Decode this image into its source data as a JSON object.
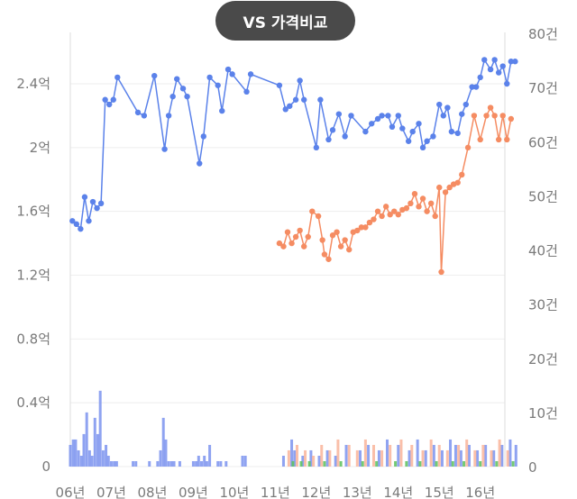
{
  "header": {
    "vs_button_label": "VS 가격비교"
  },
  "chart_data": {
    "type": "line",
    "x_tick_labels": [
      "06년",
      "07년",
      "08년",
      "09년",
      "10년",
      "11년",
      "12년",
      "13년",
      "14년",
      "15년",
      "16년"
    ],
    "y_left_ticks": [
      {
        "value": 0,
        "label": "0"
      },
      {
        "value": 0.4,
        "label": "0.4억"
      },
      {
        "value": 0.8,
        "label": "0.8억"
      },
      {
        "value": 1.2,
        "label": "1.2억"
      },
      {
        "value": 1.6,
        "label": "1.6억"
      },
      {
        "value": 2.0,
        "label": "2억"
      },
      {
        "value": 2.4,
        "label": "2.4억"
      }
    ],
    "y_right_ticks": [
      {
        "value": 0,
        "label": "0"
      },
      {
        "value": 10,
        "label": "10건"
      },
      {
        "value": 20,
        "label": "20건"
      },
      {
        "value": 30,
        "label": "30건"
      },
      {
        "value": 40,
        "label": "40건"
      },
      {
        "value": 50,
        "label": "50건"
      },
      {
        "value": 60,
        "label": "60건"
      },
      {
        "value": 70,
        "label": "70건"
      },
      {
        "value": 80,
        "label": "80건"
      }
    ],
    "ylim_left": [
      0,
      2.6
    ],
    "ylim_right": [
      0,
      80
    ],
    "xlim": [
      2006.0,
      2016.6
    ],
    "colors": {
      "blue": "#5b82ea",
      "orange": "#f58c62",
      "green": "#5cc15c",
      "grid": "#eeeeee"
    },
    "series": [
      {
        "axis": "left",
        "color": "#5b82ea",
        "points": [
          [
            2006.05,
            1.54
          ],
          [
            2006.15,
            1.52
          ],
          [
            2006.25,
            1.49
          ],
          [
            2006.35,
            1.69
          ],
          [
            2006.45,
            1.54
          ],
          [
            2006.55,
            1.66
          ],
          [
            2006.65,
            1.62
          ],
          [
            2006.75,
            1.65
          ],
          [
            2006.85,
            2.3
          ],
          [
            2006.95,
            2.27
          ],
          [
            2007.05,
            2.3
          ],
          [
            2007.15,
            2.44
          ],
          [
            2007.65,
            2.22
          ],
          [
            2007.8,
            2.2
          ],
          [
            2008.05,
            2.45
          ],
          [
            2008.3,
            1.99
          ],
          [
            2008.4,
            2.2
          ],
          [
            2008.5,
            2.32
          ],
          [
            2008.6,
            2.43
          ],
          [
            2008.75,
            2.37
          ],
          [
            2008.85,
            2.32
          ],
          [
            2009.15,
            1.9
          ],
          [
            2009.25,
            2.07
          ],
          [
            2009.4,
            2.44
          ],
          [
            2009.6,
            2.39
          ],
          [
            2009.7,
            2.23
          ],
          [
            2009.85,
            2.49
          ],
          [
            2009.95,
            2.46
          ],
          [
            2010.3,
            2.35
          ],
          [
            2010.4,
            2.46
          ],
          [
            2011.1,
            2.39
          ],
          [
            2011.25,
            2.24
          ],
          [
            2011.35,
            2.26
          ],
          [
            2011.5,
            2.3
          ],
          [
            2011.6,
            2.42
          ],
          [
            2011.7,
            2.3
          ],
          [
            2012.0,
            2.0
          ],
          [
            2012.1,
            2.3
          ],
          [
            2012.3,
            2.05
          ],
          [
            2012.4,
            2.11
          ],
          [
            2012.55,
            2.21
          ],
          [
            2012.7,
            2.07
          ],
          [
            2012.85,
            2.2
          ],
          [
            2013.2,
            2.1
          ],
          [
            2013.35,
            2.15
          ],
          [
            2013.5,
            2.18
          ],
          [
            2013.6,
            2.2
          ],
          [
            2013.75,
            2.2
          ],
          [
            2013.85,
            2.13
          ],
          [
            2014.0,
            2.2
          ],
          [
            2014.1,
            2.12
          ],
          [
            2014.25,
            2.04
          ],
          [
            2014.35,
            2.1
          ],
          [
            2014.5,
            2.15
          ],
          [
            2014.6,
            2.0
          ],
          [
            2014.7,
            2.04
          ],
          [
            2014.85,
            2.07
          ],
          [
            2015.0,
            2.27
          ],
          [
            2015.1,
            2.2
          ],
          [
            2015.2,
            2.25
          ],
          [
            2015.3,
            2.1
          ],
          [
            2015.45,
            2.09
          ],
          [
            2015.55,
            2.21
          ],
          [
            2015.65,
            2.27
          ],
          [
            2015.8,
            2.38
          ],
          [
            2015.9,
            2.38
          ],
          [
            2016.0,
            2.44
          ],
          [
            2016.1,
            2.55
          ],
          [
            2016.25,
            2.49
          ],
          [
            2016.35,
            2.55
          ],
          [
            2016.45,
            2.47
          ],
          [
            2016.55,
            2.51
          ],
          [
            2016.65,
            2.4
          ],
          [
            2016.75,
            2.54
          ],
          [
            2016.85,
            2.54
          ]
        ]
      },
      {
        "axis": "left",
        "color": "#f58c62",
        "points": [
          [
            2011.1,
            1.4
          ],
          [
            2011.2,
            1.38
          ],
          [
            2011.3,
            1.47
          ],
          [
            2011.4,
            1.4
          ],
          [
            2011.5,
            1.44
          ],
          [
            2011.6,
            1.48
          ],
          [
            2011.7,
            1.38
          ],
          [
            2011.8,
            1.44
          ],
          [
            2011.9,
            1.6
          ],
          [
            2012.05,
            1.57
          ],
          [
            2012.15,
            1.42
          ],
          [
            2012.2,
            1.33
          ],
          [
            2012.3,
            1.3
          ],
          [
            2012.4,
            1.45
          ],
          [
            2012.5,
            1.47
          ],
          [
            2012.6,
            1.38
          ],
          [
            2012.7,
            1.42
          ],
          [
            2012.8,
            1.36
          ],
          [
            2012.9,
            1.47
          ],
          [
            2013.0,
            1.48
          ],
          [
            2013.1,
            1.5
          ],
          [
            2013.2,
            1.5
          ],
          [
            2013.3,
            1.53
          ],
          [
            2013.4,
            1.55
          ],
          [
            2013.5,
            1.6
          ],
          [
            2013.6,
            1.57
          ],
          [
            2013.7,
            1.63
          ],
          [
            2013.8,
            1.58
          ],
          [
            2013.9,
            1.6
          ],
          [
            2014.0,
            1.58
          ],
          [
            2014.1,
            1.61
          ],
          [
            2014.2,
            1.62
          ],
          [
            2014.3,
            1.65
          ],
          [
            2014.4,
            1.71
          ],
          [
            2014.5,
            1.63
          ],
          [
            2014.6,
            1.68
          ],
          [
            2014.7,
            1.6
          ],
          [
            2014.8,
            1.65
          ],
          [
            2014.9,
            1.57
          ],
          [
            2015.0,
            1.75
          ],
          [
            2015.05,
            1.22
          ],
          [
            2015.15,
            1.72
          ],
          [
            2015.25,
            1.75
          ],
          [
            2015.35,
            1.77
          ],
          [
            2015.45,
            1.78
          ],
          [
            2015.55,
            1.83
          ],
          [
            2015.7,
            2.0
          ],
          [
            2015.85,
            2.2
          ],
          [
            2016.0,
            2.05
          ],
          [
            2016.15,
            2.2
          ],
          [
            2016.25,
            2.25
          ],
          [
            2016.35,
            2.2
          ],
          [
            2016.45,
            2.05
          ],
          [
            2016.55,
            2.2
          ],
          [
            2016.65,
            2.05
          ],
          [
            2016.75,
            2.18
          ]
        ]
      }
    ],
    "volume_bars": [
      {
        "color": "#7b93ee",
        "points": [
          [
            2006.0,
            4
          ],
          [
            2006.07,
            5
          ],
          [
            2006.13,
            5
          ],
          [
            2006.2,
            3
          ],
          [
            2006.27,
            2
          ],
          [
            2006.33,
            6
          ],
          [
            2006.4,
            10
          ],
          [
            2006.47,
            3
          ],
          [
            2006.53,
            2
          ],
          [
            2006.6,
            9
          ],
          [
            2006.67,
            6
          ],
          [
            2006.73,
            14
          ],
          [
            2006.8,
            3
          ],
          [
            2006.87,
            4
          ],
          [
            2006.93,
            2
          ],
          [
            2007.0,
            1
          ],
          [
            2007.07,
            1
          ],
          [
            2007.13,
            1
          ],
          [
            2007.53,
            1
          ],
          [
            2007.6,
            1
          ],
          [
            2007.93,
            1
          ],
          [
            2008.13,
            1
          ],
          [
            2008.2,
            3
          ],
          [
            2008.27,
            9
          ],
          [
            2008.33,
            5
          ],
          [
            2008.4,
            1
          ],
          [
            2008.47,
            1
          ],
          [
            2008.53,
            1
          ],
          [
            2008.67,
            1
          ],
          [
            2009.0,
            1
          ],
          [
            2009.07,
            1
          ],
          [
            2009.13,
            2
          ],
          [
            2009.2,
            1
          ],
          [
            2009.27,
            2
          ],
          [
            2009.33,
            1
          ],
          [
            2009.4,
            4
          ],
          [
            2009.6,
            1
          ],
          [
            2009.67,
            1
          ],
          [
            2009.8,
            1
          ],
          [
            2010.2,
            2
          ],
          [
            2010.27,
            2
          ],
          [
            2011.2,
            2
          ],
          [
            2011.4,
            5
          ],
          [
            2011.47,
            3
          ],
          [
            2011.67,
            2
          ],
          [
            2011.87,
            3
          ],
          [
            2012.07,
            2
          ],
          [
            2012.27,
            3
          ],
          [
            2012.47,
            2
          ],
          [
            2012.73,
            4
          ],
          [
            2013.07,
            3
          ],
          [
            2013.27,
            4
          ],
          [
            2013.53,
            3
          ],
          [
            2013.73,
            5
          ],
          [
            2014.0,
            4
          ],
          [
            2014.27,
            3
          ],
          [
            2014.47,
            5
          ],
          [
            2014.67,
            3
          ],
          [
            2014.87,
            4
          ],
          [
            2015.07,
            3
          ],
          [
            2015.27,
            5
          ],
          [
            2015.4,
            4
          ],
          [
            2015.53,
            3
          ],
          [
            2015.73,
            4
          ],
          [
            2015.93,
            3
          ],
          [
            2016.13,
            4
          ],
          [
            2016.33,
            3
          ],
          [
            2016.53,
            4
          ],
          [
            2016.73,
            5
          ],
          [
            2016.87,
            4
          ]
        ]
      },
      {
        "color": "#f9b49a",
        "points": [
          [
            2011.33,
            3
          ],
          [
            2011.53,
            4
          ],
          [
            2011.73,
            3
          ],
          [
            2011.93,
            2
          ],
          [
            2012.13,
            4
          ],
          [
            2012.33,
            3
          ],
          [
            2012.53,
            5
          ],
          [
            2012.8,
            4
          ],
          [
            2013.0,
            3
          ],
          [
            2013.2,
            5
          ],
          [
            2013.4,
            4
          ],
          [
            2013.6,
            3
          ],
          [
            2013.8,
            4
          ],
          [
            2014.07,
            5
          ],
          [
            2014.33,
            4
          ],
          [
            2014.6,
            3
          ],
          [
            2014.8,
            5
          ],
          [
            2015.0,
            4
          ],
          [
            2015.2,
            3
          ],
          [
            2015.47,
            4
          ],
          [
            2015.67,
            5
          ],
          [
            2015.87,
            3
          ],
          [
            2016.07,
            4
          ],
          [
            2016.27,
            3
          ],
          [
            2016.47,
            5
          ],
          [
            2016.67,
            3
          ]
        ]
      },
      {
        "color": "#5cc15c",
        "points": [
          [
            2011.43,
            1
          ],
          [
            2011.63,
            1
          ],
          [
            2011.83,
            1
          ],
          [
            2012.2,
            1
          ],
          [
            2012.6,
            1
          ],
          [
            2013.13,
            1
          ],
          [
            2013.47,
            1
          ],
          [
            2013.93,
            1
          ],
          [
            2014.2,
            1
          ],
          [
            2014.53,
            1
          ],
          [
            2014.93,
            1
          ],
          [
            2015.33,
            1
          ],
          [
            2015.6,
            1
          ],
          [
            2016.0,
            1
          ],
          [
            2016.4,
            1
          ],
          [
            2016.8,
            1
          ]
        ]
      }
    ]
  }
}
